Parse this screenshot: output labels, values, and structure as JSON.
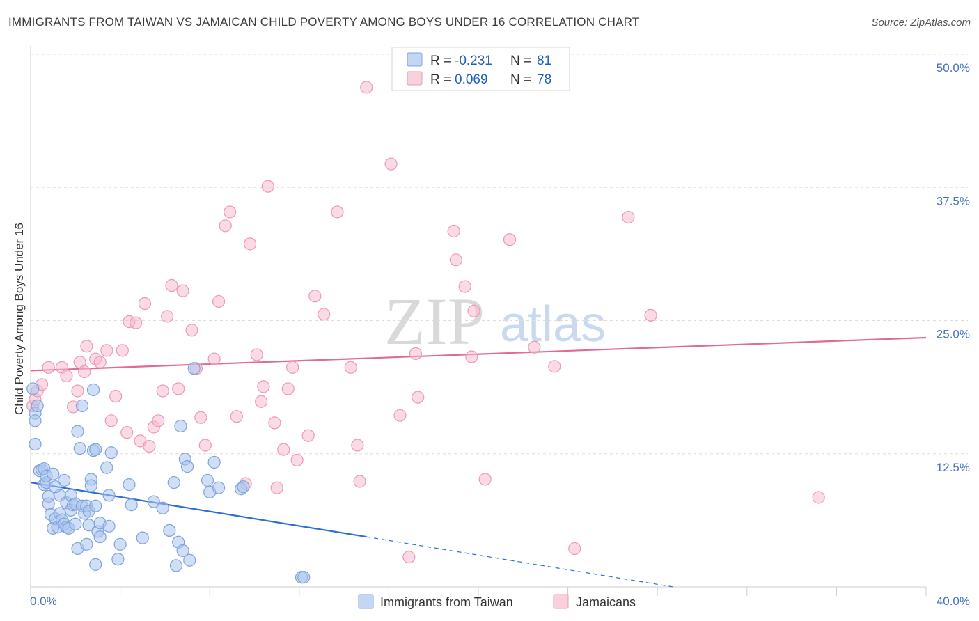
{
  "title": "IMMIGRANTS FROM TAIWAN VS JAMAICAN CHILD POVERTY AMONG BOYS UNDER 16 CORRELATION CHART",
  "source": "Source: ZipAtlas.com",
  "watermark": {
    "zip": "ZIP",
    "atlas": "atlas"
  },
  "colors": {
    "blue_fill": "#a9c4ee",
    "blue_stroke": "#7ea3dc",
    "blue_line": "#2c6fd1",
    "pink_fill": "#f6bccd",
    "pink_stroke": "#ec9ab2",
    "pink_line": "#e06b93",
    "grid": "#dddddd",
    "axis_text": "#4472c4"
  },
  "legend": {
    "rows": [
      {
        "r_label": "R = ",
        "r_value": "-0.231",
        "n_label": "N = ",
        "n_value": "81"
      },
      {
        "r_label": "R = ",
        "r_value": "0.069",
        "n_label": "N = ",
        "n_value": "78"
      }
    ]
  },
  "chart_data": {
    "type": "scatter",
    "title": "IMMIGRANTS FROM TAIWAN VS JAMAICAN CHILD POVERTY AMONG BOYS UNDER 16 CORRELATION CHART",
    "xlabel": "",
    "ylabel": "Child Poverty Among Boys Under 16",
    "xlim": [
      0,
      40
    ],
    "ylim": [
      0,
      50
    ],
    "x_tick_labels": [
      "0.0%",
      "40.0%"
    ],
    "y_ticks": [
      12.5,
      25.0,
      37.5,
      50.0
    ],
    "y_tick_labels": [
      "12.5%",
      "25.0%",
      "37.5%",
      "50.0%"
    ],
    "grid": true,
    "legend_position": "top-center",
    "series": [
      {
        "name": "Immigrants from Taiwan",
        "color": "blue",
        "trend": {
          "x0": 0,
          "y0": 9.8,
          "x1": 15,
          "y1": 4.7,
          "dashed_to_x": 28.7,
          "dashed_to_y": 0
        },
        "points": [
          [
            0.1,
            18.6
          ],
          [
            0.2,
            16.3
          ],
          [
            0.2,
            15.6
          ],
          [
            0.2,
            13.4
          ],
          [
            0.4,
            10.9
          ],
          [
            0.5,
            11.0
          ],
          [
            0.6,
            11.1
          ],
          [
            0.6,
            9.6
          ],
          [
            0.7,
            9.8
          ],
          [
            0.7,
            10.4
          ],
          [
            0.8,
            8.5
          ],
          [
            0.8,
            7.8
          ],
          [
            0.9,
            6.8
          ],
          [
            1.0,
            5.5
          ],
          [
            1.0,
            10.6
          ],
          [
            1.1,
            6.4
          ],
          [
            1.2,
            5.6
          ],
          [
            1.3,
            6.9
          ],
          [
            1.3,
            8.6
          ],
          [
            1.4,
            6.3
          ],
          [
            1.5,
            10.0
          ],
          [
            1.5,
            5.9
          ],
          [
            1.6,
            7.9
          ],
          [
            1.6,
            5.6
          ],
          [
            1.7,
            5.5
          ],
          [
            1.8,
            7.2
          ],
          [
            1.8,
            8.6
          ],
          [
            1.9,
            7.7
          ],
          [
            2.0,
            5.9
          ],
          [
            2.0,
            7.8
          ],
          [
            2.1,
            14.6
          ],
          [
            2.1,
            3.6
          ],
          [
            2.2,
            13.0
          ],
          [
            2.3,
            17.0
          ],
          [
            2.3,
            7.6
          ],
          [
            2.4,
            6.9
          ],
          [
            2.5,
            7.6
          ],
          [
            2.5,
            4.0
          ],
          [
            2.6,
            5.8
          ],
          [
            2.6,
            7.1
          ],
          [
            2.7,
            10.1
          ],
          [
            2.7,
            9.5
          ],
          [
            2.8,
            12.8
          ],
          [
            2.8,
            18.5
          ],
          [
            2.9,
            7.6
          ],
          [
            2.9,
            2.1
          ],
          [
            3.0,
            5.2
          ],
          [
            3.1,
            4.7
          ],
          [
            3.1,
            6.0
          ],
          [
            3.4,
            11.2
          ],
          [
            3.5,
            8.6
          ],
          [
            3.5,
            5.7
          ],
          [
            3.6,
            12.6
          ],
          [
            3.9,
            2.6
          ],
          [
            4.0,
            4.0
          ],
          [
            4.4,
            9.6
          ],
          [
            4.5,
            7.7
          ],
          [
            5.0,
            4.6
          ],
          [
            5.5,
            8.0
          ],
          [
            5.9,
            7.4
          ],
          [
            6.2,
            5.3
          ],
          [
            6.4,
            9.8
          ],
          [
            6.5,
            2.0
          ],
          [
            6.6,
            4.2
          ],
          [
            6.7,
            15.1
          ],
          [
            6.8,
            3.4
          ],
          [
            6.9,
            12.0
          ],
          [
            7.0,
            11.3
          ],
          [
            7.1,
            2.5
          ],
          [
            7.3,
            20.5
          ],
          [
            7.9,
            10.0
          ],
          [
            8.0,
            8.9
          ],
          [
            8.2,
            11.7
          ],
          [
            8.4,
            9.3
          ],
          [
            9.4,
            9.2
          ],
          [
            9.5,
            9.4
          ],
          [
            12.1,
            0.9
          ],
          [
            12.2,
            0.9
          ],
          [
            0.3,
            17.0
          ],
          [
            1.1,
            9.4
          ],
          [
            2.9,
            12.9
          ]
        ]
      },
      {
        "name": "Jamaicans",
        "color": "pink",
        "trend": {
          "x0": 0,
          "y0": 20.3,
          "x1": 40,
          "y1": 23.4
        },
        "points": [
          [
            0.1,
            17.0
          ],
          [
            0.2,
            17.6
          ],
          [
            0.3,
            18.4
          ],
          [
            0.5,
            19.0
          ],
          [
            0.8,
            20.6
          ],
          [
            1.4,
            20.6
          ],
          [
            1.6,
            19.8
          ],
          [
            1.9,
            16.9
          ],
          [
            2.1,
            18.4
          ],
          [
            2.2,
            21.1
          ],
          [
            2.4,
            20.2
          ],
          [
            2.5,
            22.6
          ],
          [
            2.9,
            21.4
          ],
          [
            3.1,
            21.1
          ],
          [
            3.4,
            22.2
          ],
          [
            3.6,
            15.6
          ],
          [
            3.8,
            17.9
          ],
          [
            4.1,
            22.2
          ],
          [
            4.3,
            14.5
          ],
          [
            4.4,
            24.9
          ],
          [
            4.7,
            24.8
          ],
          [
            4.9,
            13.7
          ],
          [
            5.1,
            26.6
          ],
          [
            5.3,
            13.2
          ],
          [
            5.5,
            15.0
          ],
          [
            5.7,
            15.6
          ],
          [
            5.9,
            18.4
          ],
          [
            6.1,
            25.4
          ],
          [
            6.3,
            28.3
          ],
          [
            6.6,
            18.6
          ],
          [
            6.8,
            27.8
          ],
          [
            7.2,
            24.1
          ],
          [
            7.4,
            20.5
          ],
          [
            7.6,
            15.9
          ],
          [
            7.8,
            13.3
          ],
          [
            8.2,
            21.4
          ],
          [
            8.4,
            26.8
          ],
          [
            8.7,
            33.9
          ],
          [
            8.9,
            35.2
          ],
          [
            9.2,
            16.0
          ],
          [
            9.6,
            9.7
          ],
          [
            9.8,
            32.2
          ],
          [
            10.1,
            21.8
          ],
          [
            10.3,
            17.4
          ],
          [
            10.4,
            18.8
          ],
          [
            10.6,
            37.6
          ],
          [
            10.9,
            15.4
          ],
          [
            11.0,
            9.3
          ],
          [
            11.3,
            12.9
          ],
          [
            11.5,
            18.6
          ],
          [
            11.7,
            20.6
          ],
          [
            11.9,
            11.9
          ],
          [
            12.4,
            14.2
          ],
          [
            12.7,
            27.3
          ],
          [
            13.1,
            25.6
          ],
          [
            13.7,
            35.2
          ],
          [
            14.3,
            20.6
          ],
          [
            14.6,
            13.3
          ],
          [
            14.7,
            9.9
          ],
          [
            15.0,
            46.9
          ],
          [
            16.1,
            39.7
          ],
          [
            16.5,
            16.1
          ],
          [
            16.9,
            2.8
          ],
          [
            17.2,
            21.9
          ],
          [
            17.3,
            17.8
          ],
          [
            18.9,
            33.4
          ],
          [
            19.0,
            30.7
          ],
          [
            19.4,
            28.2
          ],
          [
            19.7,
            21.6
          ],
          [
            19.8,
            25.9
          ],
          [
            20.3,
            10.1
          ],
          [
            21.4,
            32.6
          ],
          [
            22.5,
            22.5
          ],
          [
            23.4,
            20.7
          ],
          [
            24.3,
            3.6
          ],
          [
            26.7,
            34.7
          ],
          [
            27.7,
            25.5
          ],
          [
            35.2,
            8.4
          ]
        ]
      }
    ]
  },
  "bottom_legend": {
    "items": [
      {
        "label": "Immigrants from Taiwan"
      },
      {
        "label": "Jamaicans"
      }
    ]
  }
}
